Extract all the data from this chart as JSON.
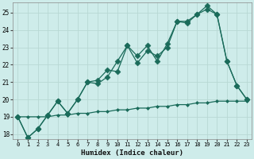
{
  "xlabel": "Humidex (Indice chaleur)",
  "bg_color": "#ceecea",
  "grid_color": "#b8d8d4",
  "line_color": "#1a6b5a",
  "xlim": [
    -0.5,
    23.5
  ],
  "ylim": [
    17.7,
    25.6
  ],
  "yticks": [
    18,
    19,
    20,
    21,
    22,
    23,
    24,
    25
  ],
  "xticks": [
    0,
    1,
    2,
    3,
    4,
    5,
    6,
    7,
    8,
    9,
    10,
    11,
    12,
    13,
    14,
    15,
    16,
    17,
    18,
    19,
    20,
    21,
    22,
    23
  ],
  "line1_x": [
    0,
    1,
    2,
    3,
    4,
    5,
    6,
    7,
    8,
    9,
    10,
    11,
    12,
    13,
    14,
    15,
    16,
    17,
    18,
    19,
    20,
    21,
    22,
    23
  ],
  "line1_y": [
    19.0,
    17.8,
    18.3,
    19.1,
    19.9,
    19.2,
    20.0,
    21.0,
    20.9,
    21.3,
    22.2,
    23.1,
    22.1,
    22.8,
    22.5,
    23.0,
    24.5,
    24.4,
    24.9,
    25.4,
    24.9,
    22.2,
    20.8,
    20.0
  ],
  "line2_x": [
    0,
    1,
    2,
    3,
    4,
    5,
    6,
    7,
    8,
    9,
    10,
    11,
    12,
    13,
    14,
    15,
    16,
    17,
    18,
    19,
    20,
    21,
    22,
    23
  ],
  "line2_y": [
    19.0,
    17.8,
    18.3,
    19.1,
    19.9,
    19.2,
    20.0,
    21.0,
    21.1,
    21.7,
    21.6,
    23.1,
    22.5,
    23.1,
    22.2,
    23.2,
    24.5,
    24.5,
    24.9,
    25.2,
    24.9,
    22.2,
    20.8,
    20.0
  ],
  "line3_x": [
    0,
    1,
    2,
    3,
    4,
    5,
    6,
    7,
    8,
    9,
    10,
    11,
    12,
    13,
    14,
    15,
    16,
    17,
    18,
    19,
    20,
    21,
    22,
    23
  ],
  "line3_y": [
    19.0,
    19.0,
    19.0,
    19.0,
    19.1,
    19.1,
    19.2,
    19.2,
    19.3,
    19.3,
    19.4,
    19.4,
    19.5,
    19.5,
    19.6,
    19.6,
    19.7,
    19.7,
    19.8,
    19.8,
    19.9,
    19.9,
    19.9,
    19.9
  ]
}
